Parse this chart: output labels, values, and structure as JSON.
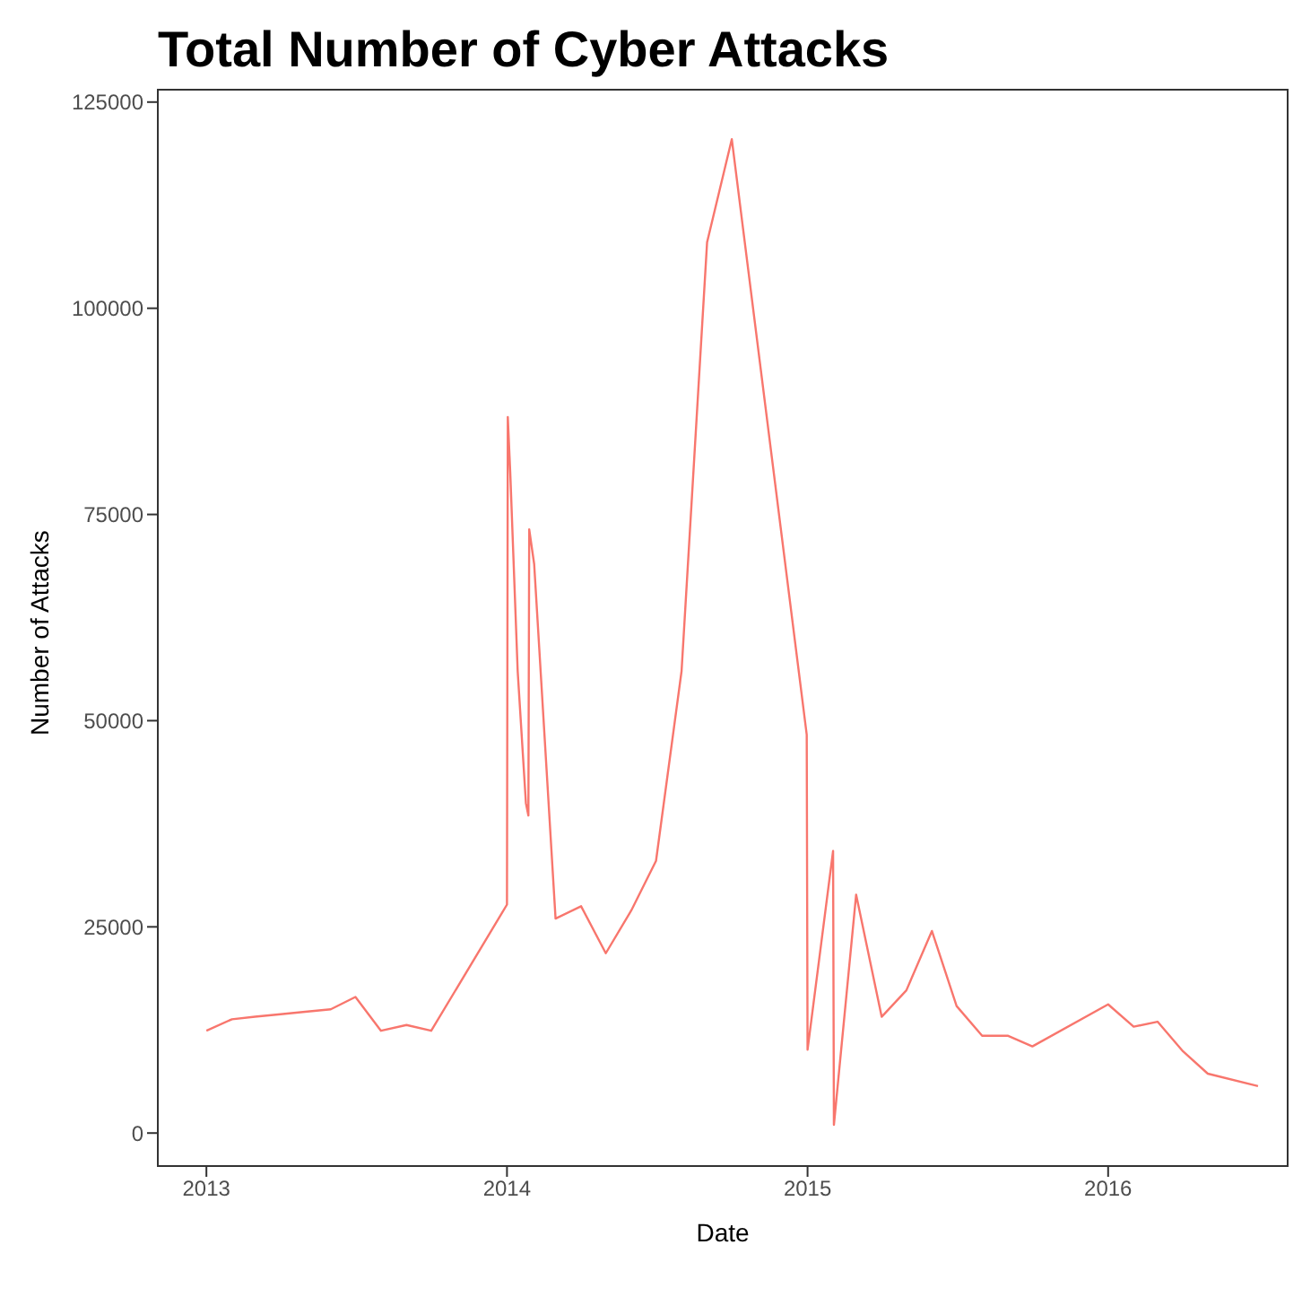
{
  "chart_data": {
    "type": "line",
    "title": "Total Number of Cyber Attacks",
    "xlabel": "Date",
    "ylabel": "Number of Attacks",
    "x": [
      "2013-01-01",
      "2013-02-01",
      "2013-03-01",
      "2013-04-01",
      "2013-05-01",
      "2013-06-01",
      "2013-07-01",
      "2013-08-01",
      "2013-09-01",
      "2013-10-01",
      "2014-01-01",
      "2014-01-02",
      "2014-01-05",
      "2014-01-14",
      "2014-01-24",
      "2014-01-27",
      "2014-01-28",
      "2014-02-03",
      "2014-03-01",
      "2014-04-01",
      "2014-05-01",
      "2014-06-01",
      "2014-07-01",
      "2014-08-01",
      "2014-09-01",
      "2014-10-01",
      "2014-12-31",
      "2015-01-01",
      "2015-02-01",
      "2015-02-02",
      "2015-03-01",
      "2015-04-01",
      "2015-05-01",
      "2015-06-01",
      "2015-07-01",
      "2015-08-01",
      "2015-09-01",
      "2015-10-01",
      "2016-01-01",
      "2016-02-01",
      "2016-03-01",
      "2016-04-01",
      "2016-05-01",
      "2016-07-01"
    ],
    "series": [
      {
        "color": "#f8766d",
        "values": [
          12400,
          13800,
          14100,
          14400,
          14700,
          15000,
          16500,
          12400,
          13100,
          12400,
          27700,
          86800,
          80000,
          56000,
          40000,
          38500,
          73200,
          69000,
          26000,
          27500,
          21800,
          27000,
          33000,
          56000,
          108000,
          120500,
          48300,
          10100,
          34200,
          1000,
          28900,
          14100,
          17300,
          24500,
          15400,
          11800,
          11800,
          10500,
          15600,
          12900,
          13500,
          9900,
          7200,
          5700
        ]
      }
    ],
    "xlim": [
      "2012-11-03",
      "2016-08-06"
    ],
    "xticks": [
      {
        "value": "2013-01-01",
        "label": "2013"
      },
      {
        "value": "2014-01-01",
        "label": "2014"
      },
      {
        "value": "2015-01-01",
        "label": "2015"
      },
      {
        "value": "2016-01-01",
        "label": "2016"
      }
    ],
    "ylim": [
      -4000,
      126500
    ],
    "yticks": [
      0,
      25000,
      50000,
      75000,
      100000,
      125000
    ],
    "marker": "none",
    "line_style": "solid"
  }
}
